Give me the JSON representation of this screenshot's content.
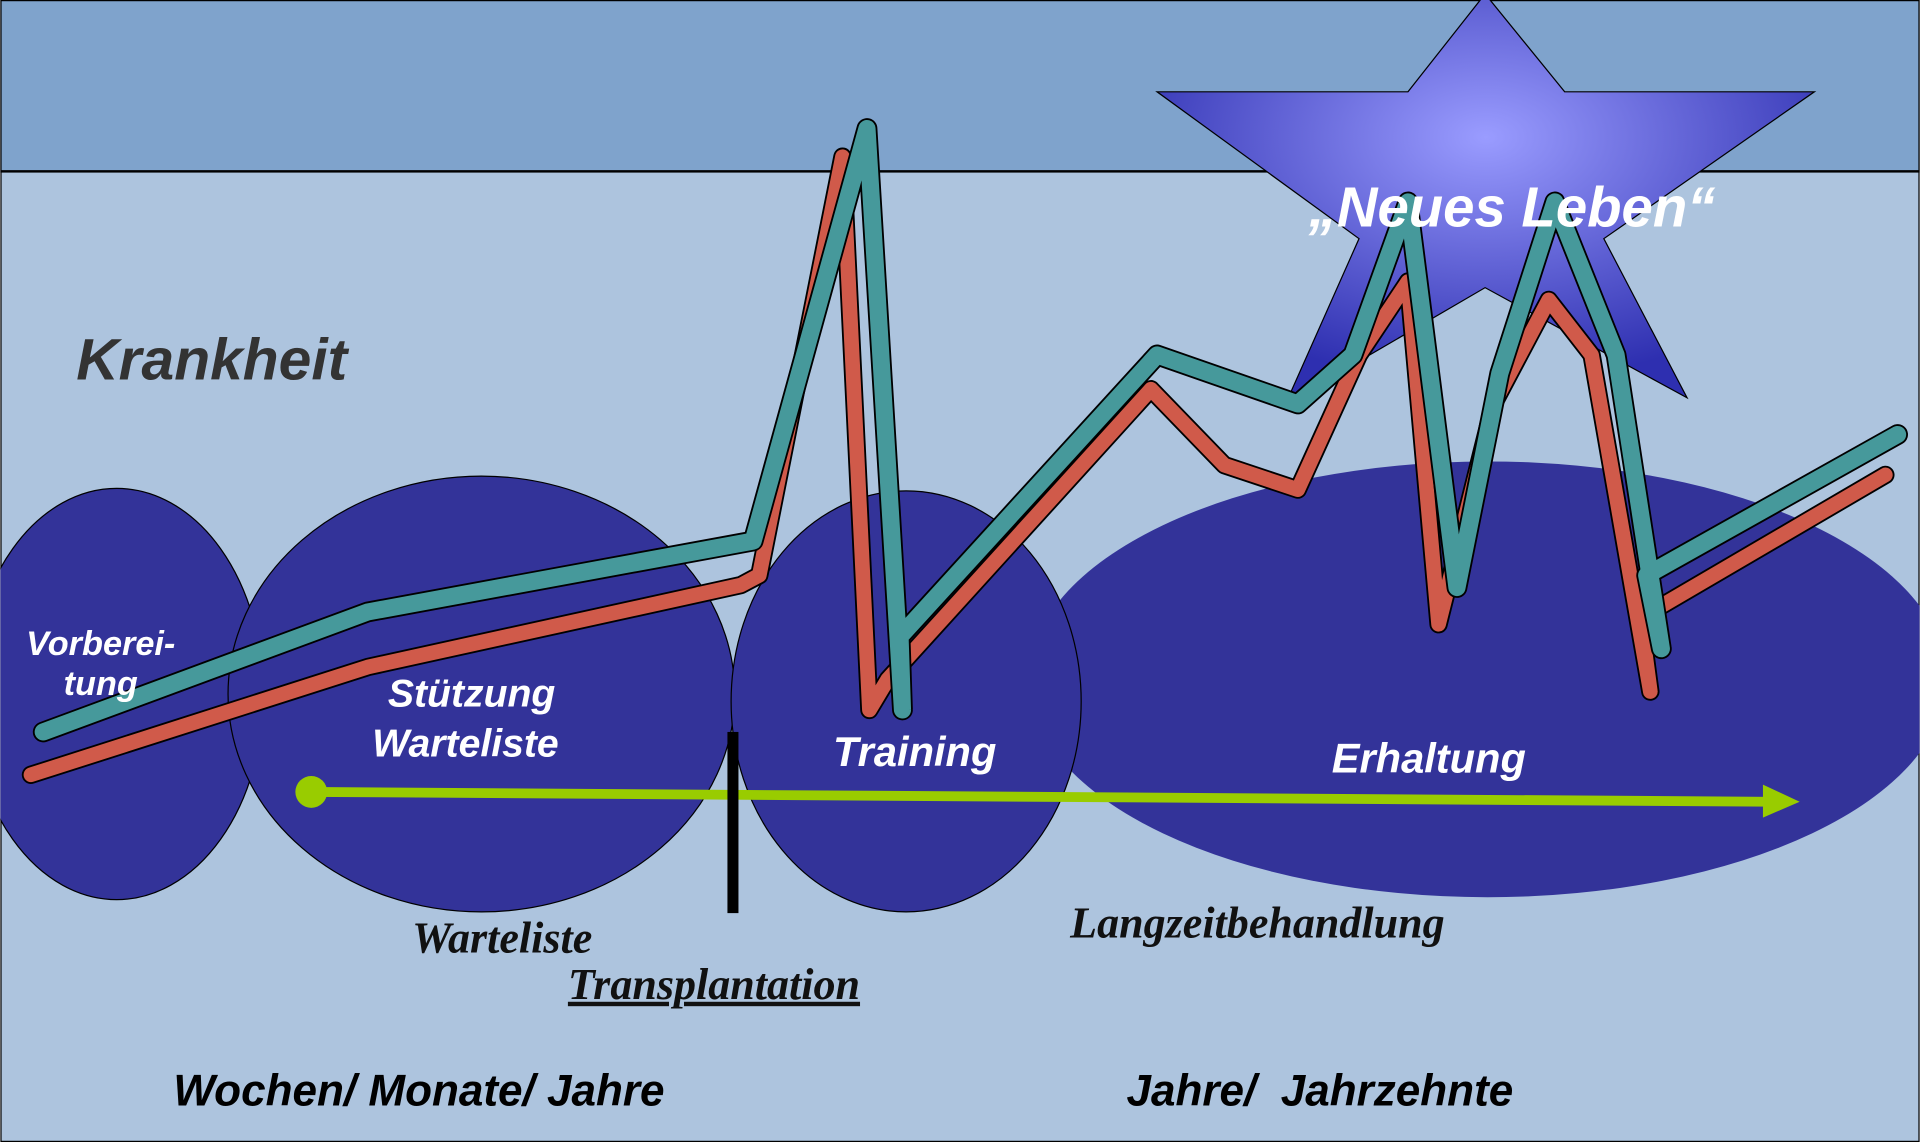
{
  "labels": {
    "disease": "Krankheit",
    "new_life": "„Neues Leben“"
  },
  "phases": [
    {
      "lines": [
        "Vorberei-",
        "tung"
      ]
    },
    {
      "lines": [
        "Stützung",
        "Warteliste"
      ]
    },
    {
      "lines": [
        "Training"
      ]
    },
    {
      "lines": [
        "Erhaltung"
      ]
    }
  ],
  "timeline": {
    "waiting": "Warteliste",
    "transplant": "Transplantation",
    "longterm": "Langzeitbehandlung"
  },
  "durations": [
    "Wochen/ Monate/ Jahre",
    "Jahre/  Jahrzehnte"
  ]
}
